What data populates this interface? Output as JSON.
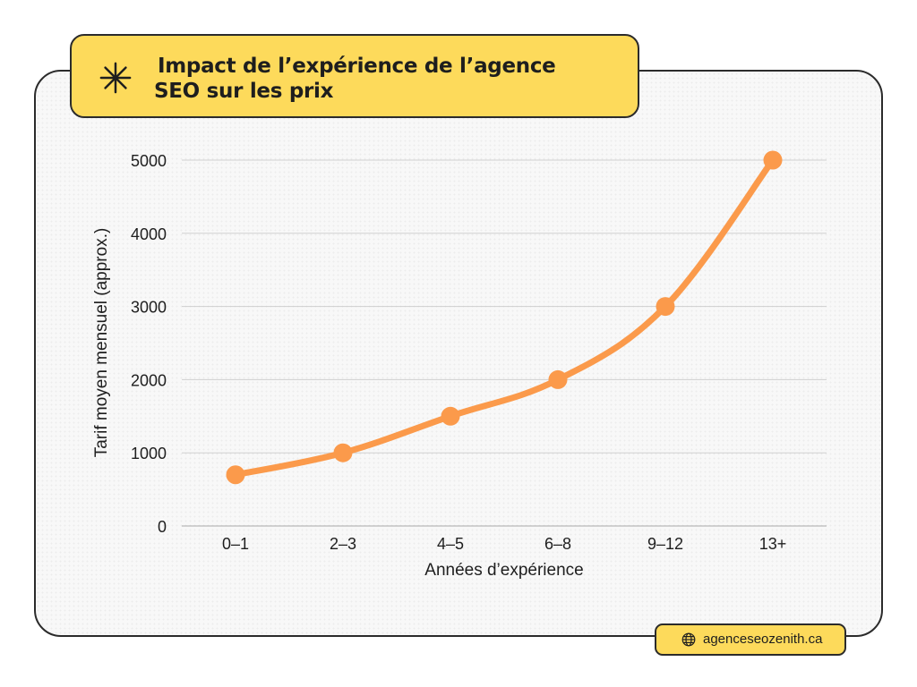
{
  "header": {
    "title_line1": "Impact de l’expérience de l’agence",
    "title_line2": "SEO sur les prix",
    "icon": "asterisk-icon"
  },
  "footer": {
    "source": "agenceseozenith.ca",
    "icon": "globe-icon"
  },
  "colors": {
    "accent": "#fdda5b",
    "line": "#fb9a4b",
    "grid": "#cfcfcf",
    "text": "#1e1e1e"
  },
  "chart_data": {
    "type": "line",
    "categories": [
      "0–1",
      "2–3",
      "4–5",
      "6–8",
      "9–12",
      "13+"
    ],
    "values": [
      700,
      1000,
      1500,
      2000,
      3000,
      5000
    ],
    "xlabel": "Années d’expérience",
    "ylabel": "Tarif moyen mensuel (approx.)",
    "ylim": [
      0,
      5000
    ],
    "yticks": [
      0,
      1000,
      2000,
      3000,
      4000,
      5000
    ],
    "grid": true,
    "smooth": true,
    "markers": true
  }
}
